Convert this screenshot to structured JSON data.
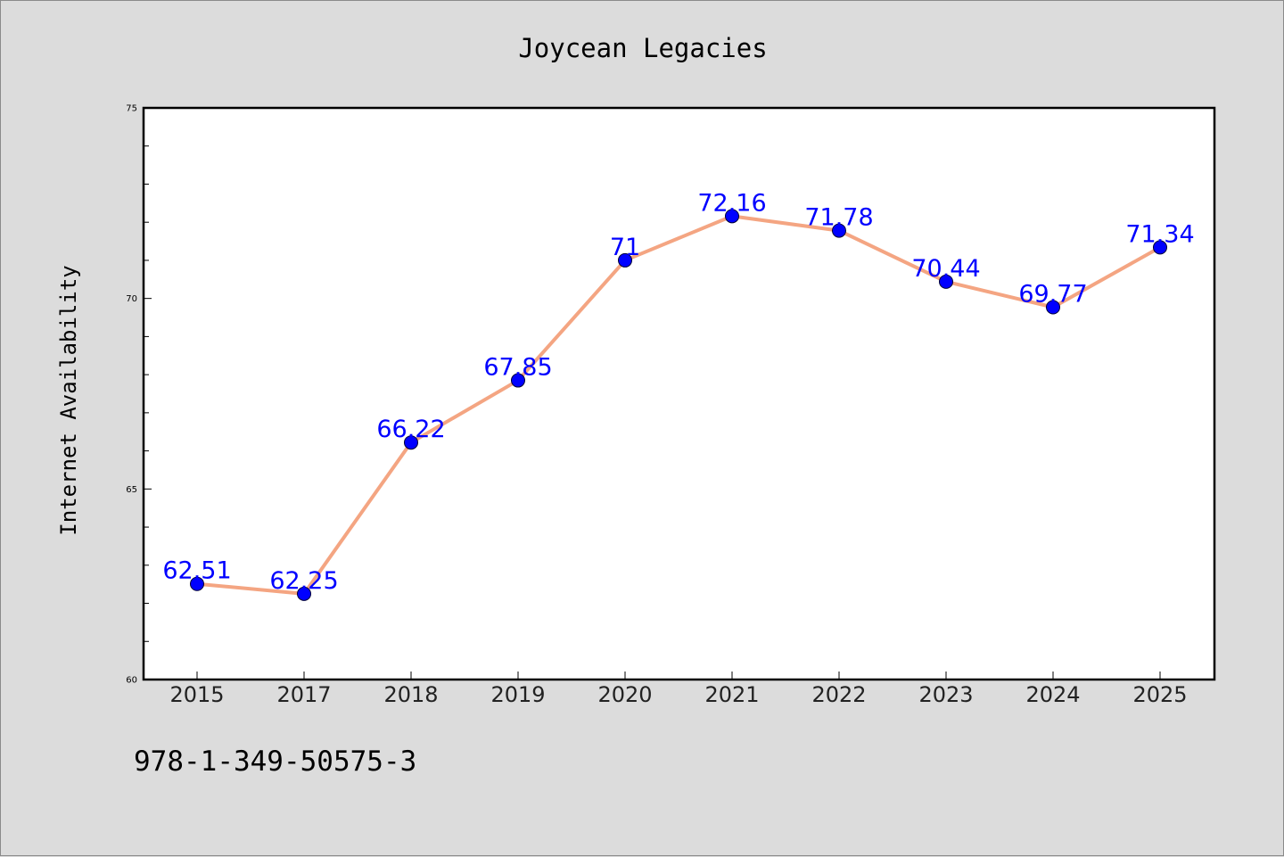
{
  "chart_data": {
    "type": "line",
    "title": "Joycean Legacies",
    "xlabel": "",
    "ylabel": "Internet Availability",
    "categories": [
      "2015",
      "2017",
      "2018",
      "2019",
      "2020",
      "2021",
      "2022",
      "2023",
      "2024",
      "2025"
    ],
    "series": [
      {
        "values": [
          62.51,
          62.25,
          66.22,
          67.85,
          71,
          72.16,
          71.78,
          70.44,
          69.77,
          71.34
        ],
        "data_labels": [
          "62.51",
          "62.25",
          "66.22",
          "67.85",
          "71",
          "72.16",
          "71.78",
          "70.44",
          "69.77",
          "71.34"
        ],
        "line_color": "#f4a582",
        "marker_color": "#0000ff",
        "label_color": "#0000ff"
      }
    ],
    "ylim": [
      60,
      75
    ],
    "yticks": [
      60,
      65,
      70,
      75
    ],
    "ytick_labels": [
      "60",
      "65",
      "70",
      "75"
    ],
    "grid": false,
    "legend": "none"
  },
  "annotation": {
    "text": "978-1-349-50575-3"
  }
}
